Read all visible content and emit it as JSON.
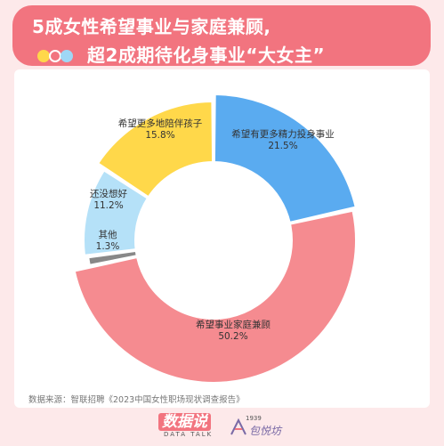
{
  "title": {
    "line1": "5成女性希望事业与家庭兼顾,",
    "line2": "超2成期待化身事业“大女主”"
  },
  "colors": {
    "title_bg": "#f2747f",
    "background": "#fde9ea",
    "yellow": "#ffd84a",
    "blue": "#5aabf0",
    "light_blue": "#b5e1f8",
    "pink": "#f58b90",
    "gray": "#888888"
  },
  "chart_data": {
    "type": "pie",
    "donut": true,
    "title": "",
    "series": [
      {
        "label": "希望有更多精力投身事业",
        "value": 21.5,
        "value_label": "21.5%",
        "color": "#5aabf0"
      },
      {
        "label": "希望事业家庭兼顾",
        "value": 50.2,
        "value_label": "50.2%",
        "color": "#f58b90"
      },
      {
        "label": "其他",
        "value": 1.3,
        "value_label": "1.3%",
        "color": "#888888"
      },
      {
        "label": "还没想好",
        "value": 11.2,
        "value_label": "11.2%",
        "color": "#b5e1f8"
      },
      {
        "label": "希望更多地陪伴孩子",
        "value": 15.8,
        "value_label": "15.8%",
        "color": "#ffd84a"
      }
    ]
  },
  "source": "数据来源：智联招聘《2023中国女性职场现状调查报告》",
  "footer": {
    "brand": "数据说",
    "brand_sub": "DATA TALK",
    "partner_num": "1939",
    "partner_name": "包悦坊"
  }
}
